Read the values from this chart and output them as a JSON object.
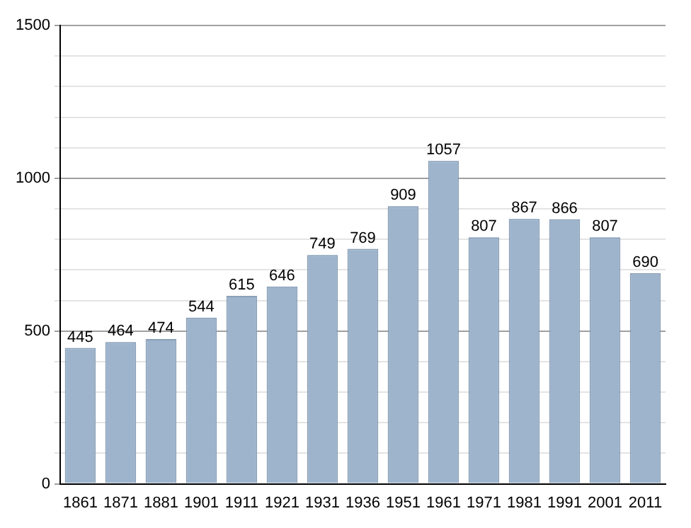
{
  "chart_data": {
    "type": "bar",
    "categories": [
      "1861",
      "1871",
      "1881",
      "1901",
      "1911",
      "1921",
      "1931",
      "1936",
      "1951",
      "1961",
      "1971",
      "1981",
      "1991",
      "2001",
      "2011"
    ],
    "values": [
      445,
      464,
      474,
      544,
      615,
      646,
      749,
      769,
      909,
      1057,
      807,
      867,
      866,
      807,
      690
    ],
    "color": "#9db4cc",
    "data_labels": true,
    "grid": "y",
    "ylim": [
      0,
      1500
    ],
    "yticks": [
      0,
      {
        "value": 100,
        "label": null
      },
      {
        "value": 200,
        "label": null
      },
      {
        "value": 300,
        "label": null
      },
      {
        "value": 400,
        "label": null
      },
      500,
      {
        "value": 600,
        "label": null
      },
      {
        "value": 700,
        "label": null
      },
      {
        "value": 800,
        "label": null
      },
      {
        "value": 900,
        "label": null
      },
      1000,
      {
        "value": 1100,
        "label": null
      },
      {
        "value": 1200,
        "label": null
      },
      {
        "value": 1300,
        "label": null
      },
      {
        "value": 1400,
        "label": null
      },
      1500
    ]
  }
}
